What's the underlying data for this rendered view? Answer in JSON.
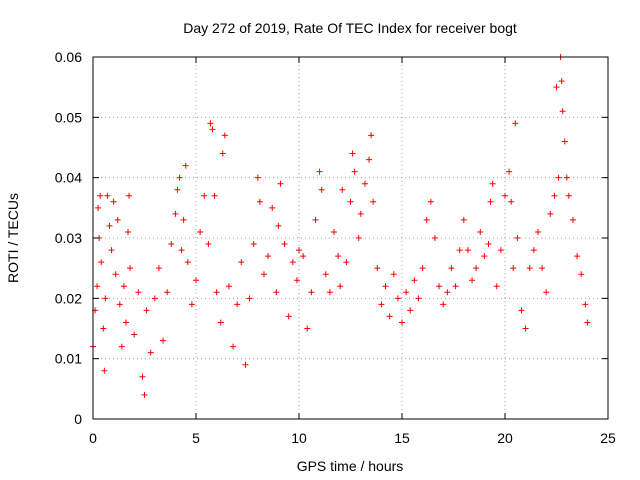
{
  "chart_data": {
    "type": "scatter",
    "title": "Day 272 of 2019, Rate Of TEC Index for receiver bogt",
    "xlabel": "GPS time / hours",
    "ylabel": "ROTI / TECUs",
    "xlim": [
      0,
      25
    ],
    "ylim": [
      0,
      0.06
    ],
    "x_ticks": [
      0,
      5,
      10,
      15,
      20,
      25
    ],
    "y_ticks": [
      0,
      0.01,
      0.02,
      0.03,
      0.04,
      0.05,
      0.06
    ],
    "x_tick_labels": [
      "0",
      "5",
      "10",
      "15",
      "20",
      "25"
    ],
    "y_tick_labels": [
      "0",
      "0.01",
      "0.02",
      "0.03",
      "0.04",
      "0.05",
      "0.06"
    ],
    "grid": true,
    "marker": "+",
    "color": "#ff0000",
    "series": [
      {
        "name": "ROTI",
        "points": [
          [
            0.0,
            0.012
          ],
          [
            0.1,
            0.018
          ],
          [
            0.2,
            0.022
          ],
          [
            0.25,
            0.035
          ],
          [
            0.3,
            0.03
          ],
          [
            0.35,
            0.037
          ],
          [
            0.4,
            0.026
          ],
          [
            0.5,
            0.015
          ],
          [
            0.55,
            0.008
          ],
          [
            0.6,
            0.02
          ],
          [
            0.7,
            0.037
          ],
          [
            0.8,
            0.032
          ],
          [
            0.9,
            0.028
          ],
          [
            1.0,
            0.036
          ],
          [
            1.1,
            0.024
          ],
          [
            1.2,
            0.033
          ],
          [
            1.3,
            0.019
          ],
          [
            1.4,
            0.012
          ],
          [
            1.5,
            0.022
          ],
          [
            1.6,
            0.016
          ],
          [
            1.7,
            0.031
          ],
          [
            1.75,
            0.037
          ],
          [
            1.8,
            0.025
          ],
          [
            2.0,
            0.014
          ],
          [
            2.2,
            0.021
          ],
          [
            2.4,
            0.007
          ],
          [
            2.5,
            0.004
          ],
          [
            2.6,
            0.018
          ],
          [
            2.8,
            0.011
          ],
          [
            3.0,
            0.02
          ],
          [
            3.2,
            0.025
          ],
          [
            3.4,
            0.013
          ],
          [
            3.6,
            0.021
          ],
          [
            3.8,
            0.029
          ],
          [
            4.0,
            0.034
          ],
          [
            4.1,
            0.038
          ],
          [
            4.2,
            0.04
          ],
          [
            4.3,
            0.028
          ],
          [
            4.4,
            0.033
          ],
          [
            4.5,
            0.042
          ],
          [
            4.6,
            0.026
          ],
          [
            4.8,
            0.019
          ],
          [
            5.0,
            0.023
          ],
          [
            5.2,
            0.031
          ],
          [
            5.4,
            0.037
          ],
          [
            5.6,
            0.029
          ],
          [
            5.7,
            0.049
          ],
          [
            5.8,
            0.048
          ],
          [
            5.9,
            0.037
          ],
          [
            6.0,
            0.021
          ],
          [
            6.2,
            0.016
          ],
          [
            6.3,
            0.044
          ],
          [
            6.4,
            0.047
          ],
          [
            6.6,
            0.022
          ],
          [
            6.8,
            0.012
          ],
          [
            7.0,
            0.019
          ],
          [
            7.2,
            0.026
          ],
          [
            7.4,
            0.009
          ],
          [
            7.6,
            0.02
          ],
          [
            7.8,
            0.029
          ],
          [
            8.0,
            0.04
          ],
          [
            8.1,
            0.036
          ],
          [
            8.3,
            0.024
          ],
          [
            8.5,
            0.027
          ],
          [
            8.7,
            0.035
          ],
          [
            8.9,
            0.021
          ],
          [
            9.0,
            0.032
          ],
          [
            9.1,
            0.039
          ],
          [
            9.3,
            0.029
          ],
          [
            9.5,
            0.017
          ],
          [
            9.7,
            0.026
          ],
          [
            9.9,
            0.023
          ],
          [
            10.0,
            0.028
          ],
          [
            10.2,
            0.027
          ],
          [
            10.4,
            0.015
          ],
          [
            10.6,
            0.021
          ],
          [
            10.8,
            0.033
          ],
          [
            11.0,
            0.041
          ],
          [
            11.1,
            0.038
          ],
          [
            11.3,
            0.024
          ],
          [
            11.5,
            0.021
          ],
          [
            11.7,
            0.031
          ],
          [
            11.9,
            0.027
          ],
          [
            12.0,
            0.022
          ],
          [
            12.1,
            0.038
          ],
          [
            12.3,
            0.026
          ],
          [
            12.5,
            0.036
          ],
          [
            12.6,
            0.044
          ],
          [
            12.7,
            0.041
          ],
          [
            12.9,
            0.03
          ],
          [
            13.0,
            0.034
          ],
          [
            13.2,
            0.039
          ],
          [
            13.4,
            0.043
          ],
          [
            13.5,
            0.047
          ],
          [
            13.6,
            0.036
          ],
          [
            13.8,
            0.025
          ],
          [
            14.0,
            0.019
          ],
          [
            14.2,
            0.022
          ],
          [
            14.4,
            0.017
          ],
          [
            14.6,
            0.024
          ],
          [
            14.8,
            0.02
          ],
          [
            15.0,
            0.016
          ],
          [
            15.2,
            0.021
          ],
          [
            15.4,
            0.018
          ],
          [
            15.6,
            0.023
          ],
          [
            15.8,
            0.02
          ],
          [
            16.0,
            0.025
          ],
          [
            16.2,
            0.033
          ],
          [
            16.4,
            0.036
          ],
          [
            16.6,
            0.03
          ],
          [
            16.8,
            0.022
          ],
          [
            17.0,
            0.019
          ],
          [
            17.2,
            0.021
          ],
          [
            17.4,
            0.025
          ],
          [
            17.6,
            0.022
          ],
          [
            17.8,
            0.028
          ],
          [
            18.0,
            0.033
          ],
          [
            18.2,
            0.028
          ],
          [
            18.4,
            0.023
          ],
          [
            18.6,
            0.025
          ],
          [
            18.8,
            0.031
          ],
          [
            19.0,
            0.027
          ],
          [
            19.2,
            0.029
          ],
          [
            19.3,
            0.036
          ],
          [
            19.4,
            0.039
          ],
          [
            19.6,
            0.022
          ],
          [
            19.8,
            0.028
          ],
          [
            20.0,
            0.037
          ],
          [
            20.2,
            0.041
          ],
          [
            20.3,
            0.036
          ],
          [
            20.4,
            0.025
          ],
          [
            20.5,
            0.049
          ],
          [
            20.6,
            0.03
          ],
          [
            20.8,
            0.018
          ],
          [
            21.0,
            0.015
          ],
          [
            21.2,
            0.025
          ],
          [
            21.4,
            0.028
          ],
          [
            21.6,
            0.031
          ],
          [
            21.8,
            0.025
          ],
          [
            22.0,
            0.021
          ],
          [
            22.2,
            0.034
          ],
          [
            22.4,
            0.037
          ],
          [
            22.5,
            0.055
          ],
          [
            22.6,
            0.04
          ],
          [
            22.7,
            0.06
          ],
          [
            22.75,
            0.056
          ],
          [
            22.8,
            0.051
          ],
          [
            22.9,
            0.046
          ],
          [
            23.0,
            0.04
          ],
          [
            23.1,
            0.037
          ],
          [
            23.3,
            0.033
          ],
          [
            23.5,
            0.027
          ],
          [
            23.7,
            0.024
          ],
          [
            23.9,
            0.019
          ],
          [
            24.0,
            0.016
          ]
        ]
      }
    ]
  }
}
